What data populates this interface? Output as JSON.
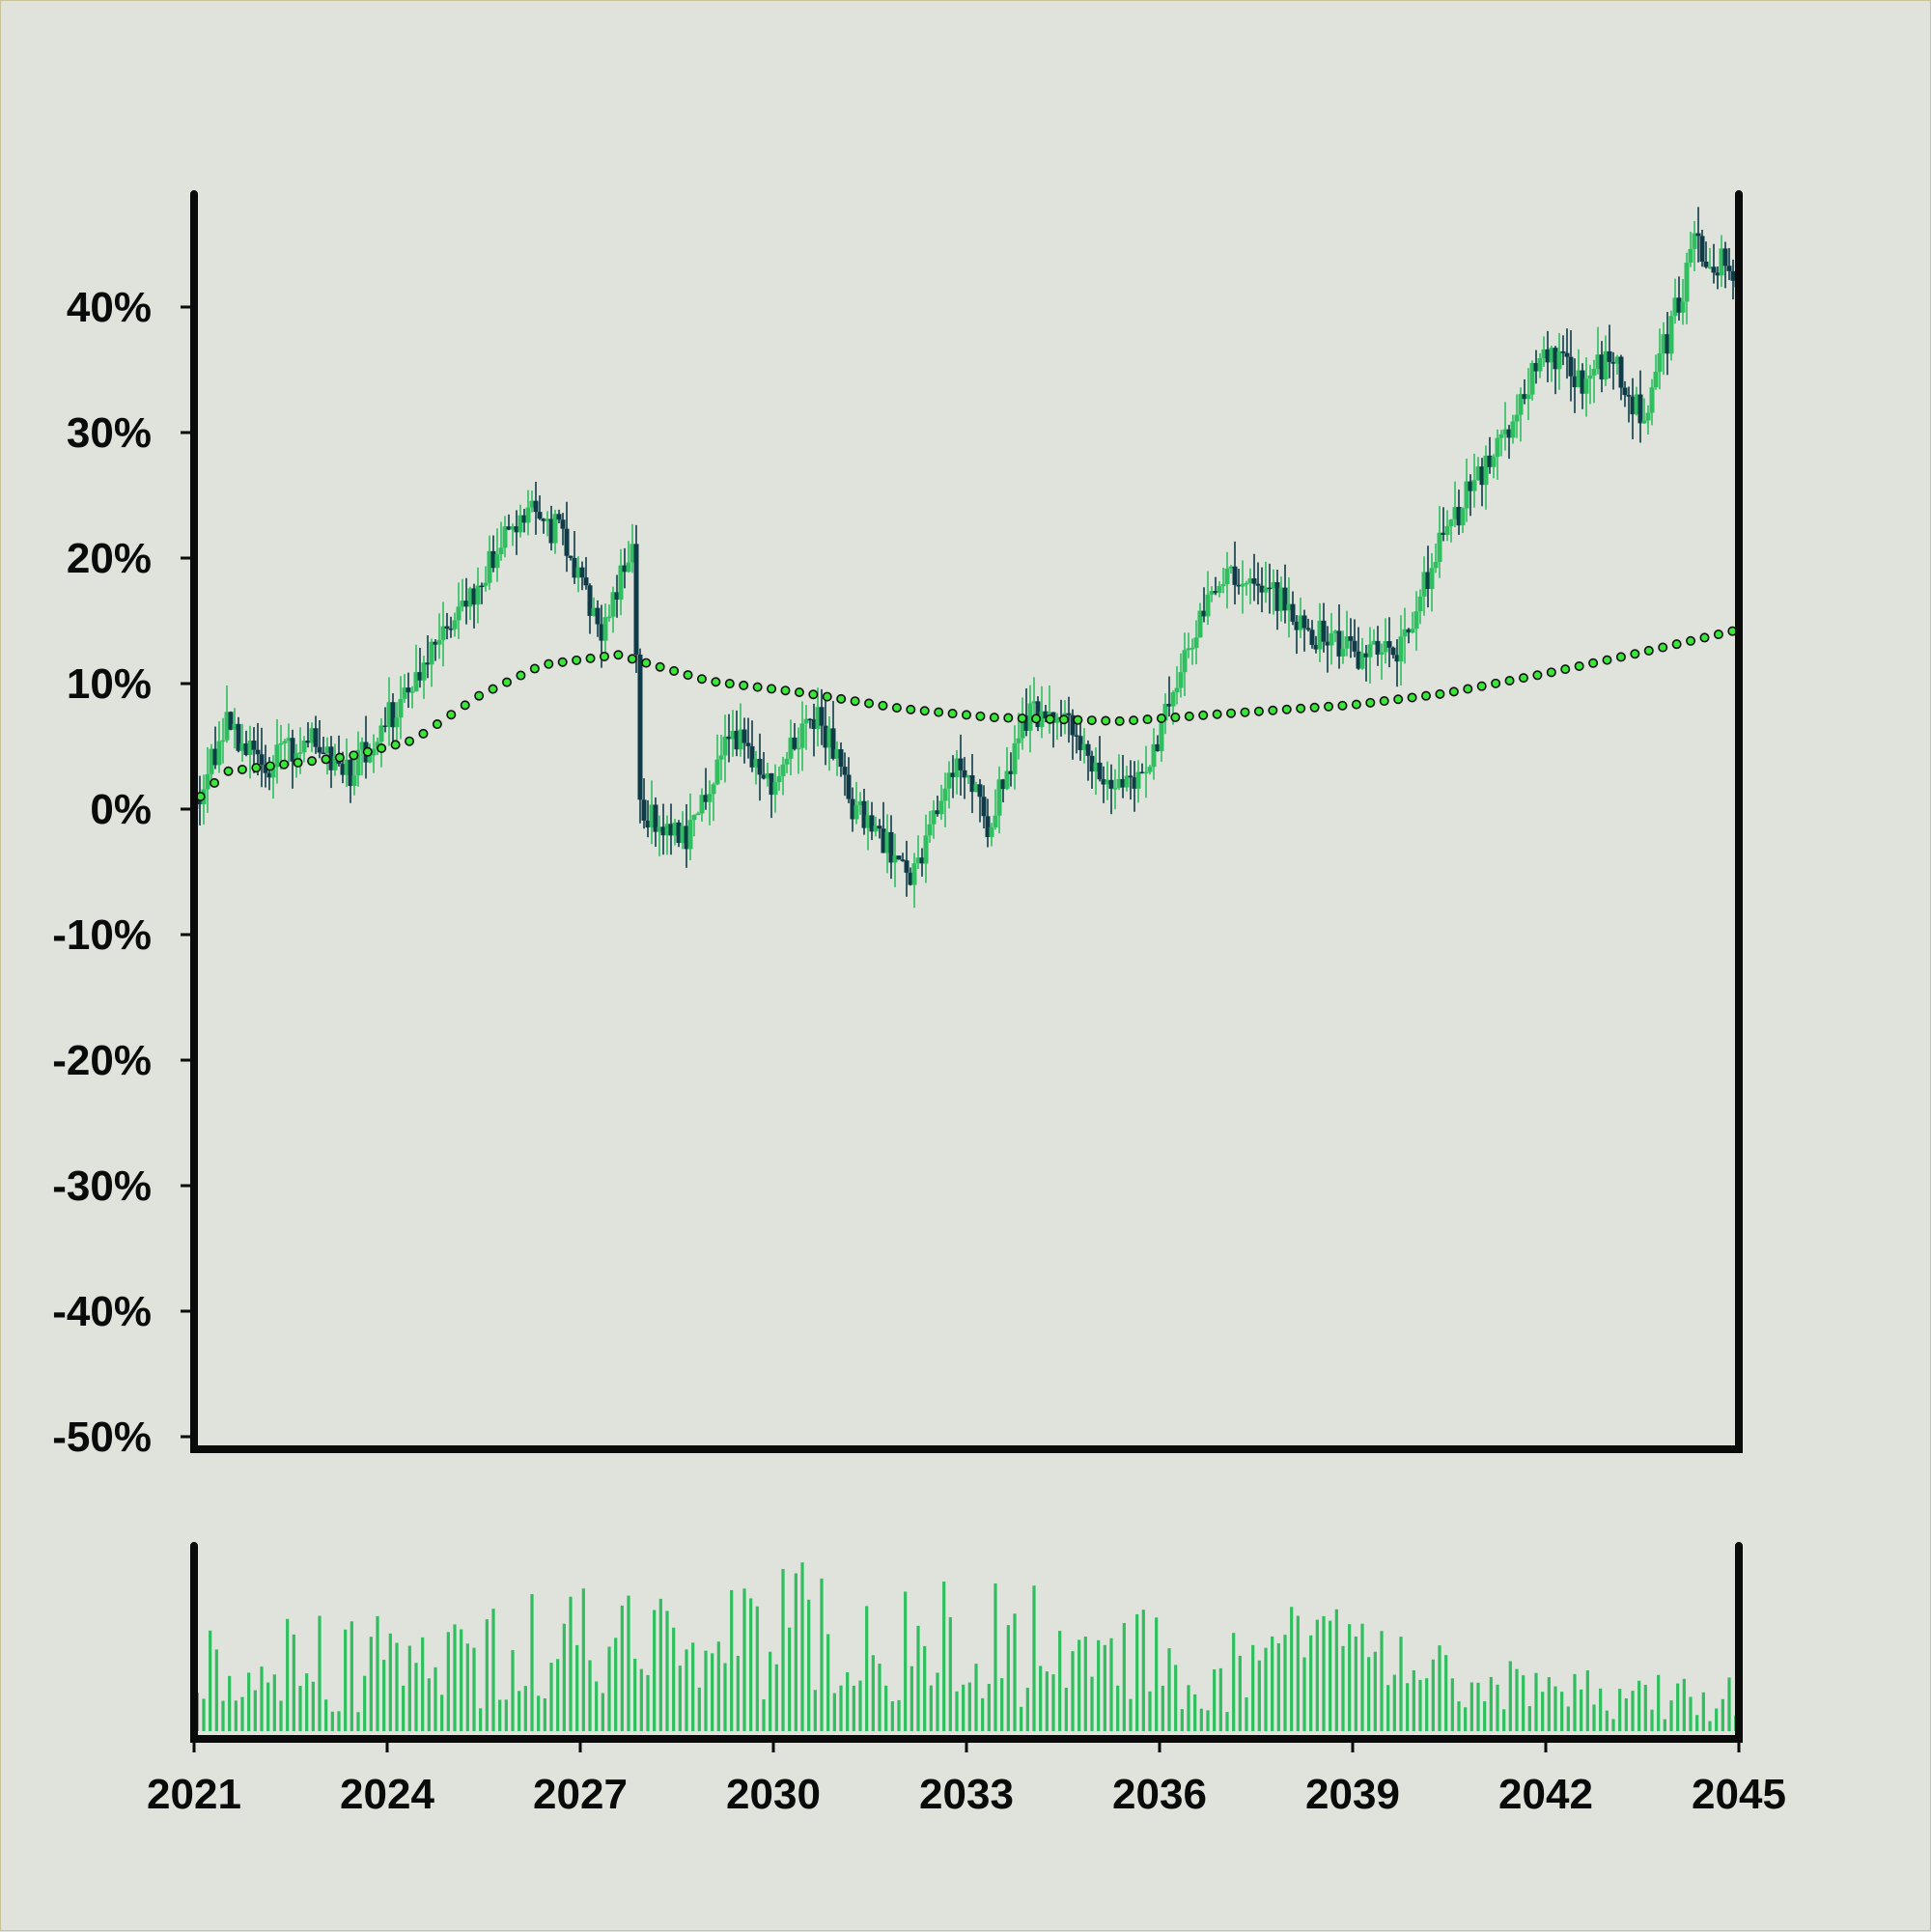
{
  "chart_data": {
    "type": "candlestick",
    "title": "",
    "xlabel": "",
    "ylabel": "",
    "x_range": [
      "2021-01",
      "2045-01"
    ],
    "x_tick_labels": [
      "2021",
      "2024",
      "2027",
      "2030",
      "2033",
      "2036",
      "2039",
      "2042",
      "2045"
    ],
    "y_range_percent": [
      -51,
      49
    ],
    "y_tick_labels": [
      "40%",
      "30%",
      "20%",
      "10%",
      "0%",
      "-10%",
      "-20%",
      "-30%",
      "-40%",
      "-50%"
    ],
    "y_tick_values": [
      40,
      30,
      20,
      10,
      0,
      -10,
      -20,
      -30,
      -40,
      -50
    ],
    "grid": false,
    "legend": "none",
    "colors": {
      "up": "#2fbf5f",
      "down": "#0e3b47",
      "moving_average_fill": "#39e639",
      "moving_average_outline": "#111111",
      "volume": "#2fbf5f",
      "axis": "#0a0a0a",
      "background": "#dfe3dc"
    },
    "price_keyframes": [
      {
        "x": "2021-01",
        "value": 0
      },
      {
        "x": "2021-07",
        "value": 7
      },
      {
        "x": "2022-02",
        "value": 3
      },
      {
        "x": "2022-10",
        "value": 6
      },
      {
        "x": "2023-06",
        "value": 3
      },
      {
        "x": "2024-06",
        "value": 10
      },
      {
        "x": "2025-06",
        "value": 18
      },
      {
        "x": "2026-03",
        "value": 24
      },
      {
        "x": "2026-09",
        "value": 22
      },
      {
        "x": "2027-05",
        "value": 14
      },
      {
        "x": "2027-11",
        "value": 22
      },
      {
        "x": "2027-12",
        "value": 0
      },
      {
        "x": "2028-09",
        "value": -2
      },
      {
        "x": "2029-05",
        "value": 6
      },
      {
        "x": "2030-01",
        "value": 2
      },
      {
        "x": "2030-09",
        "value": 8
      },
      {
        "x": "2031-04",
        "value": 0
      },
      {
        "x": "2032-03",
        "value": -5
      },
      {
        "x": "2032-11",
        "value": 4
      },
      {
        "x": "2033-05",
        "value": -1
      },
      {
        "x": "2034-01",
        "value": 8
      },
      {
        "x": "2034-09",
        "value": 6
      },
      {
        "x": "2035-03",
        "value": 2
      },
      {
        "x": "2035-11",
        "value": 3
      },
      {
        "x": "2036-07",
        "value": 14
      },
      {
        "x": "2037-03",
        "value": 19
      },
      {
        "x": "2037-10",
        "value": 17
      },
      {
        "x": "2038-06",
        "value": 14
      },
      {
        "x": "2039-03",
        "value": 12
      },
      {
        "x": "2039-10",
        "value": 13
      },
      {
        "x": "2040-06",
        "value": 22
      },
      {
        "x": "2041-06",
        "value": 30
      },
      {
        "x": "2042-01",
        "value": 37
      },
      {
        "x": "2042-07",
        "value": 34
      },
      {
        "x": "2043-01",
        "value": 36
      },
      {
        "x": "2043-07",
        "value": 31
      },
      {
        "x": "2044-05",
        "value": 45
      },
      {
        "x": "2044-11",
        "value": 43
      },
      {
        "x": "2045-01",
        "value": 41
      }
    ],
    "moving_average": [
      {
        "x": "2021-01",
        "value": 0.5
      },
      {
        "x": "2021-07",
        "value": 3
      },
      {
        "x": "2023-06",
        "value": 4.2
      },
      {
        "x": "2024-06",
        "value": 5.5
      },
      {
        "x": "2025-06",
        "value": 9
      },
      {
        "x": "2026-06",
        "value": 11.5
      },
      {
        "x": "2027-08",
        "value": 12.3
      },
      {
        "x": "2029-01",
        "value": 10.2
      },
      {
        "x": "2030-06",
        "value": 9.3
      },
      {
        "x": "2032-01",
        "value": 8
      },
      {
        "x": "2033-06",
        "value": 7.3
      },
      {
        "x": "2035-06",
        "value": 7
      },
      {
        "x": "2037-01",
        "value": 7.6
      },
      {
        "x": "2039-01",
        "value": 8.3
      },
      {
        "x": "2040-06",
        "value": 9.2
      },
      {
        "x": "2042-01",
        "value": 10.8
      },
      {
        "x": "2043-06",
        "value": 12.4
      },
      {
        "x": "2045-01",
        "value": 14.3
      }
    ],
    "volume_profile_relative": [
      {
        "x": "2021-01",
        "value": 0.45
      },
      {
        "x": "2023-06",
        "value": 0.4
      },
      {
        "x": "2026-01",
        "value": 0.5
      },
      {
        "x": "2028-06",
        "value": 0.5
      },
      {
        "x": "2030-06",
        "value": 0.6
      },
      {
        "x": "2032-06",
        "value": 0.55
      },
      {
        "x": "2034-06",
        "value": 0.55
      },
      {
        "x": "2036-06",
        "value": 0.4
      },
      {
        "x": "2038-06",
        "value": 0.45
      },
      {
        "x": "2040-06",
        "value": 0.3
      },
      {
        "x": "2042-06",
        "value": 0.25
      },
      {
        "x": "2045-01",
        "value": 0.2
      }
    ]
  }
}
